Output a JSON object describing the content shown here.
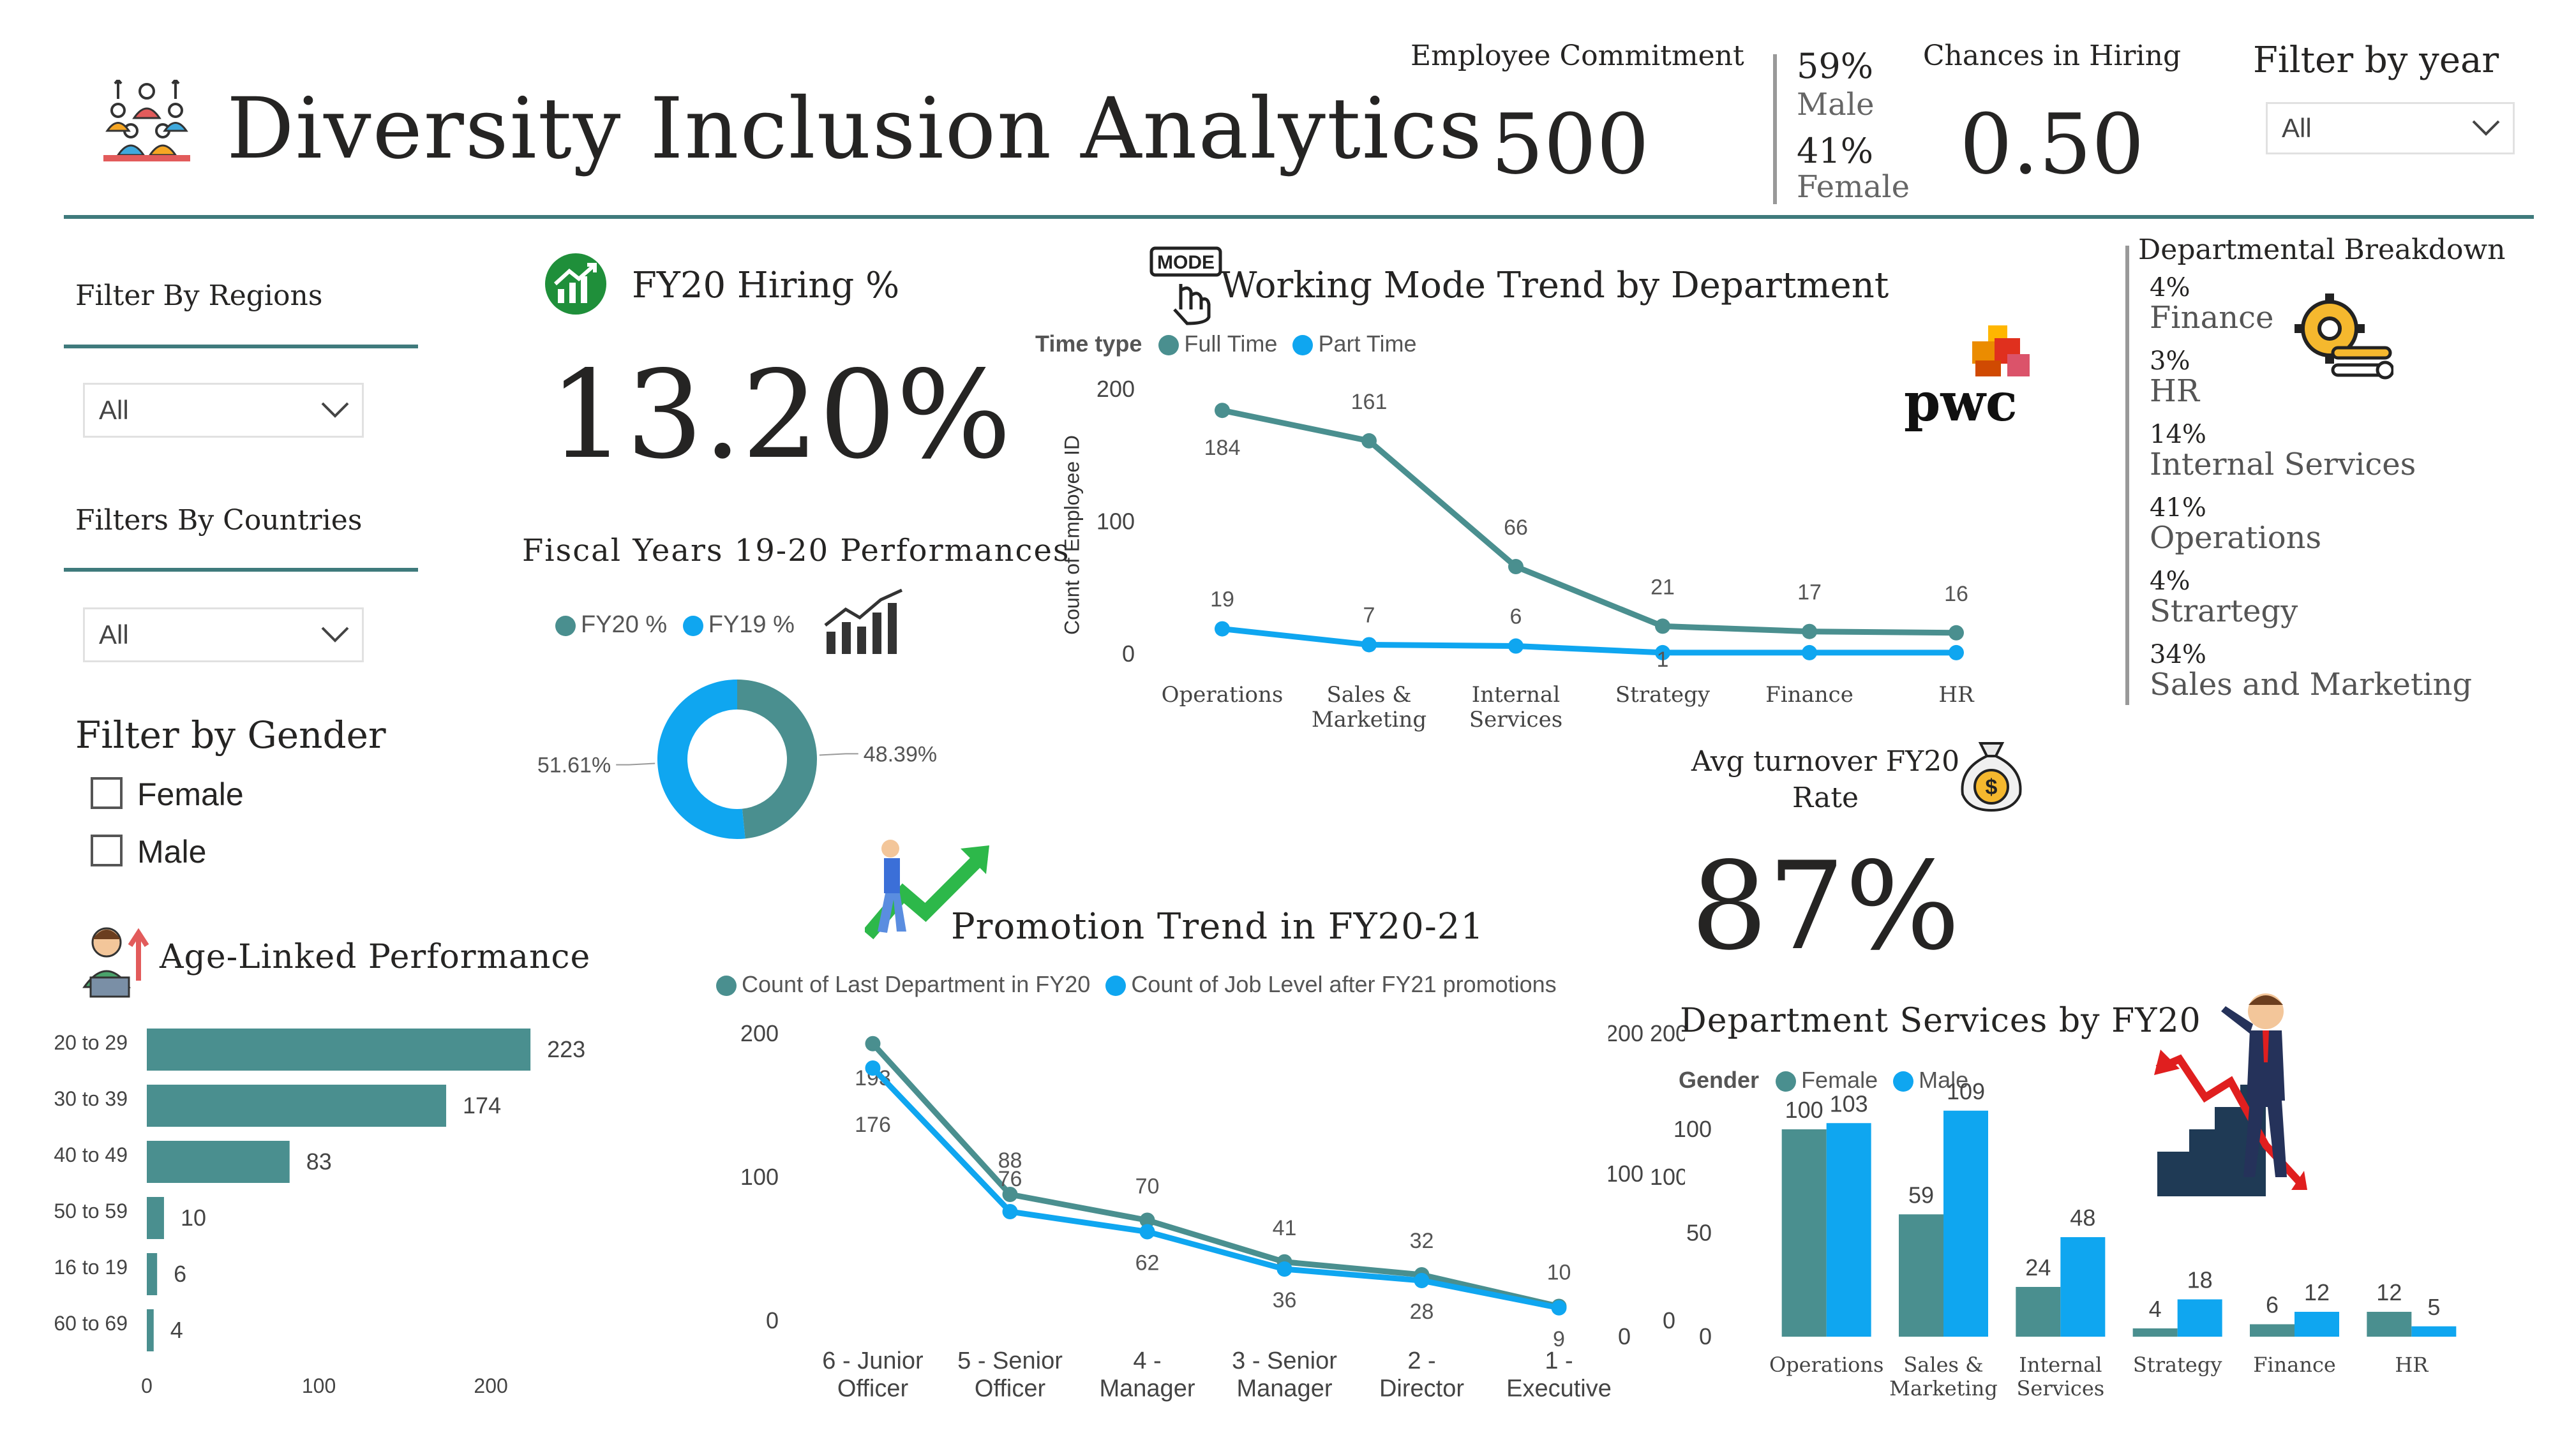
{
  "header": {
    "title": "Diversity Inclusion Analytics",
    "commitment_label": "Employee Commitment",
    "commitment_value": "500",
    "male_pct": "59%",
    "male_label": "Male",
    "female_pct": "41%",
    "female_label": "Female",
    "hiring_label": "Chances in Hiring",
    "hiring_value": "0.50",
    "year_filter_label": "Filter by year",
    "year_filter_value": "All"
  },
  "filters": {
    "regions_label": "Filter By Regions",
    "regions_value": "All",
    "countries_label": "Filters By Countries",
    "countries_value": "All",
    "gender_label": "Filter by Gender",
    "gender_options": [
      "Female",
      "Male"
    ]
  },
  "hiring": {
    "title": "FY20 Hiring %",
    "value": "13.20%"
  },
  "colors": {
    "teal": "#4a8f8f",
    "blue": "#0fa6f0",
    "divider": "#3f7a7c",
    "pwc_orange": "#e0301e"
  },
  "fiscal": {
    "title": "Fiscal Years 19-20 Performances",
    "chart_data": {
      "type": "pie",
      "title": "Fiscal Years 19-20 Performances",
      "series": [
        {
          "name": "FY20 %",
          "value": 48.39,
          "label": "48.39%",
          "color": "#4a8f8f"
        },
        {
          "name": "FY19 %",
          "value": 51.61,
          "label": "51.61%",
          "color": "#0fa6f0"
        }
      ]
    }
  },
  "working_mode": {
    "title": "Working Mode Trend by Department",
    "logo_text": "pwc",
    "chart_data": {
      "type": "line",
      "title": "Working Mode Trend by Department",
      "legend_title": "Time type",
      "ylabel": "Count of Employee ID",
      "ylim": [
        0,
        200
      ],
      "yticks": [
        0,
        100,
        200
      ],
      "categories": [
        [
          "Operations"
        ],
        [
          "Sales &",
          "Marketing"
        ],
        [
          "Internal",
          "Services"
        ],
        [
          "Strategy"
        ],
        [
          "Finance"
        ],
        [
          "HR"
        ]
      ],
      "series": [
        {
          "name": "Full Time",
          "color": "#4a8f8f",
          "values": [
            184,
            161,
            66,
            21,
            17,
            16
          ],
          "labels": [
            "184",
            "161",
            "66",
            "21",
            "17",
            "16"
          ]
        },
        {
          "name": "Part Time",
          "color": "#0fa6f0",
          "values": [
            19,
            7,
            6,
            1,
            1,
            1
          ],
          "labels": [
            "19",
            "7",
            "6",
            "1",
            "",
            ""
          ]
        }
      ]
    }
  },
  "breakdown": {
    "title": "Departmental Breakdown",
    "items": [
      {
        "pct": "4%",
        "name": "Finance"
      },
      {
        "pct": "3%",
        "name": "HR"
      },
      {
        "pct": "14%",
        "name": "Internal Services"
      },
      {
        "pct": "41%",
        "name": "Operations"
      },
      {
        "pct": "4%",
        "name": "Strartegy"
      },
      {
        "pct": "34%",
        "name": "Sales and Marketing"
      }
    ]
  },
  "turnover": {
    "title_line1": "Avg turnover FY20",
    "title_line2": "Rate",
    "value": "87%"
  },
  "age": {
    "title": "Age-Linked Performance",
    "chart_data": {
      "type": "bar",
      "orientation": "horizontal",
      "title": "Age-Linked Performance",
      "categories": [
        "20 to 29",
        "30 to 39",
        "40 to 49",
        "50 to 59",
        "16 to 19",
        "60 to 69"
      ],
      "values": [
        223,
        174,
        83,
        10,
        6,
        4
      ],
      "xlim": [
        0,
        230
      ],
      "xticks": [
        0,
        100,
        200
      ],
      "color": "#4a8f8f"
    }
  },
  "promotion": {
    "title": "Promotion Trend in FY20-21",
    "chart_data": {
      "type": "line",
      "title": "Promotion Trend in FY20-21",
      "ylim": [
        0,
        200
      ],
      "yticks": [
        0,
        100,
        200
      ],
      "categories": [
        [
          "6 - Junior",
          "Officer"
        ],
        [
          "5 - Senior",
          "Officer"
        ],
        [
          "4 -",
          "Manager"
        ],
        [
          "3 - Senior",
          "Manager"
        ],
        [
          "2 -",
          "Director"
        ],
        [
          "1 -",
          "Executive"
        ]
      ],
      "series": [
        {
          "name": "Count of Last Department in FY20",
          "color": "#4a8f8f",
          "values": [
            193,
            88,
            70,
            41,
            32,
            10
          ],
          "labels": [
            "193",
            "88",
            "70",
            "41",
            "32",
            "10"
          ]
        },
        {
          "name": "Count of Job Level after FY21 promotions",
          "color": "#0fa6f0",
          "values": [
            176,
            76,
            62,
            36,
            28,
            9
          ],
          "labels": [
            "176",
            "76",
            "62",
            "36",
            "28",
            "9"
          ]
        }
      ]
    }
  },
  "dept_services": {
    "title": "Department Services by FY20",
    "chart_data": {
      "type": "bar",
      "title": "Department Services by FY20",
      "legend_title": "Gender",
      "ylim": [
        0,
        120
      ],
      "yticks": [
        0,
        50,
        100
      ],
      "categories": [
        [
          "Operations"
        ],
        [
          "Sales &",
          "Marketing"
        ],
        [
          "Internal",
          "Services"
        ],
        [
          "Strategy"
        ],
        [
          "Finance"
        ],
        [
          "HR"
        ]
      ],
      "series": [
        {
          "name": "Female",
          "color": "#4a8f8f",
          "values": [
            100,
            59,
            24,
            4,
            6,
            12
          ]
        },
        {
          "name": "Male",
          "color": "#0fa6f0",
          "values": [
            103,
            109,
            48,
            18,
            12,
            5
          ]
        }
      ]
    }
  }
}
